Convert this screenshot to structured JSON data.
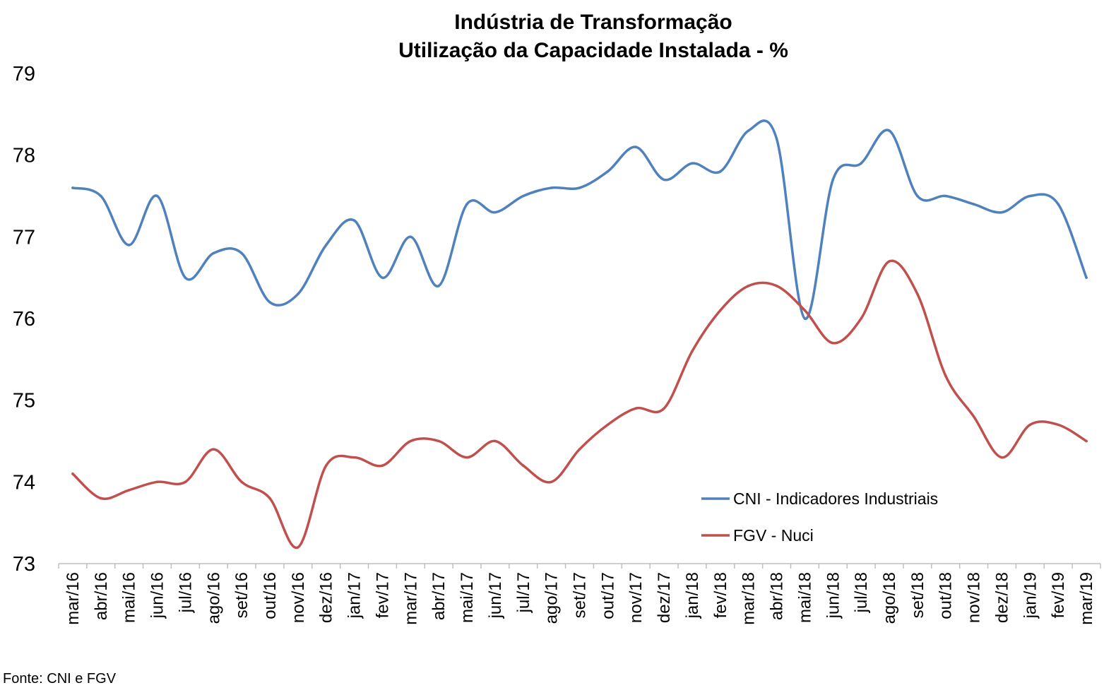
{
  "chart_data": {
    "type": "line",
    "title_line1": "Indústria de Transformação",
    "title_line2": "Utilização da Capacidade Instalada - %",
    "xlabel": "",
    "ylabel": "",
    "ylim": [
      73,
      79
    ],
    "yticks": [
      "73",
      "74",
      "75",
      "76",
      "77",
      "78",
      "79"
    ],
    "grid": false,
    "legend_position": "lower-right",
    "categories": [
      "mar/16",
      "abr/16",
      "mai/16",
      "jun/16",
      "jul/16",
      "ago/16",
      "set/16",
      "out/16",
      "nov/16",
      "dez/16",
      "jan/17",
      "fev/17",
      "mar/17",
      "abr/17",
      "mai/17",
      "jun/17",
      "jul/17",
      "ago/17",
      "set/17",
      "out/17",
      "nov/17",
      "dez/17",
      "jan/18",
      "fev/18",
      "mar/18",
      "abr/18",
      "mai/18",
      "jun/18",
      "jul/18",
      "ago/18",
      "set/18",
      "out/18",
      "nov/18",
      "dez/18",
      "jan/19",
      "fev/19",
      "mar/19"
    ],
    "series": [
      {
        "name": "CNI - Indicadores Industriais",
        "color": "#4F81BD",
        "values": [
          77.6,
          77.5,
          76.9,
          77.5,
          76.5,
          76.8,
          76.8,
          76.2,
          76.3,
          76.9,
          77.2,
          76.5,
          77.0,
          76.4,
          77.4,
          77.3,
          77.5,
          77.6,
          77.6,
          77.8,
          78.1,
          77.7,
          77.9,
          77.8,
          78.3,
          78.2,
          76.0,
          77.7,
          77.9,
          78.3,
          77.5,
          77.5,
          77.4,
          77.3,
          77.5,
          77.4,
          76.5
        ]
      },
      {
        "name": "FGV - Nuci",
        "color": "#C0504D",
        "values": [
          74.1,
          73.8,
          73.9,
          74.0,
          74.0,
          74.4,
          74.0,
          73.8,
          73.2,
          74.2,
          74.3,
          74.2,
          74.5,
          74.5,
          74.3,
          74.5,
          74.2,
          74.0,
          74.4,
          74.7,
          74.9,
          74.9,
          75.6,
          76.1,
          76.4,
          76.4,
          76.1,
          75.7,
          76.0,
          76.7,
          76.3,
          75.3,
          74.8,
          74.3,
          74.7,
          74.7,
          74.5
        ]
      }
    ]
  },
  "source": "Fonte: CNI e FGV"
}
